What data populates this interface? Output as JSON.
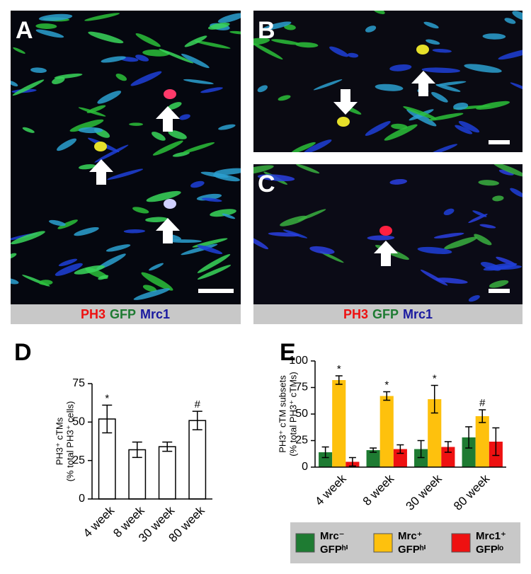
{
  "panels": [
    {
      "label": "A",
      "caption": [
        "PH3",
        "GFP",
        "Mrc1"
      ]
    },
    {
      "label": "B"
    },
    {
      "label": "C",
      "caption": [
        "PH3",
        "GFP",
        "Mrc1"
      ]
    }
  ],
  "chart_data": [
    {
      "type": "bar",
      "label": "D",
      "ylabel": [
        "PH3⁺ cTMs",
        "(% total PH3⁺ cells)"
      ],
      "categories": [
        "4 week",
        "8 week",
        "30 week",
        "80 week"
      ],
      "values": [
        52,
        32,
        34,
        51
      ],
      "errors": [
        9,
        5,
        3,
        6
      ],
      "notes": [
        "*",
        null,
        null,
        "#"
      ],
      "color": "#ffffff",
      "ylim": [
        0,
        75
      ],
      "yticks": [
        0,
        25,
        50,
        75
      ]
    },
    {
      "type": "grouped-bar",
      "label": "E",
      "ylabel": [
        "PH3⁺ cTM subsets",
        "(% total PH3⁺ cTMs)"
      ],
      "categories": [
        "4 week",
        "8 week",
        "30 week",
        "80 week"
      ],
      "series": [
        {
          "name": "Mrc⁻ GFPʰⁱ",
          "color": "#1e7b32",
          "values": [
            14,
            16,
            17,
            28
          ],
          "errors": [
            5,
            2,
            8,
            10
          ],
          "notes": [
            null,
            null,
            null,
            null
          ]
        },
        {
          "name": "Mrc⁺ GFPʰⁱ",
          "color": "#fec10d",
          "values": [
            82,
            67,
            64,
            48
          ],
          "errors": [
            4,
            4,
            13,
            6
          ],
          "notes": [
            "*",
            "*",
            "*",
            "#"
          ]
        },
        {
          "name": "Mrc1⁺ GFPˡᵒ",
          "color": "#ee1111",
          "values": [
            5,
            17,
            19,
            24
          ],
          "errors": [
            4,
            4,
            5,
            13
          ],
          "notes": [
            null,
            null,
            null,
            null
          ]
        }
      ],
      "ylim": [
        0,
        100
      ],
      "yticks": [
        0,
        25,
        50,
        75,
        100
      ],
      "legend": "bottom"
    }
  ]
}
